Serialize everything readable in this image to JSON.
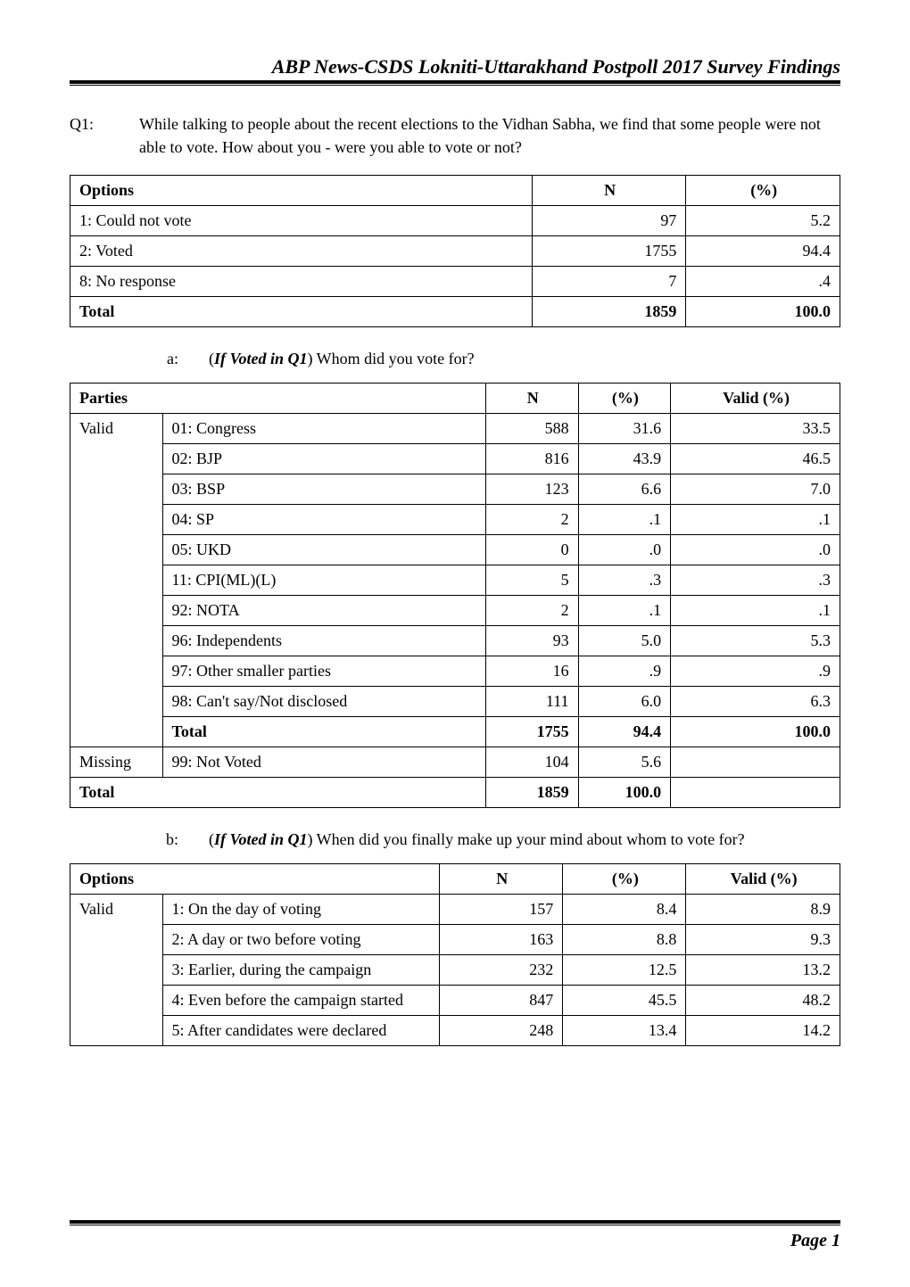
{
  "header": {
    "title": "ABP News-CSDS Lokniti-Uttarakhand Postpoll 2017 Survey Findings"
  },
  "q1": {
    "label": "Q1:",
    "text": "While talking to people about the recent elections to the Vidhan Sabha, we find that some people were not able to vote. How about you - were you able to vote or not?"
  },
  "table1": {
    "columns": [
      "Options",
      "N",
      "(%)"
    ],
    "col_widths": [
      "60%",
      "20%",
      "20%"
    ],
    "col_align": [
      "left",
      "right",
      "right"
    ],
    "header_align": [
      "left",
      "center",
      "center"
    ],
    "rows": [
      [
        "1: Could not vote",
        "97",
        "5.2"
      ],
      [
        "2: Voted",
        "1755",
        "94.4"
      ],
      [
        "8: No response",
        "7",
        ".4"
      ]
    ],
    "total_row": [
      "Total",
      "1859",
      "100.0"
    ],
    "border_color": "#000000",
    "background_color": "#ffffff",
    "font_size_pt": 14
  },
  "sub_a": {
    "label": "a:",
    "prefix": "(",
    "emph": "If Voted in Q1",
    "suffix": ") Whom did you vote for?"
  },
  "table2": {
    "columns": [
      "Parties",
      "",
      "N",
      "(%)",
      "Valid (%)"
    ],
    "col_widths": [
      "12%",
      "42%",
      "12%",
      "12%",
      "22%"
    ],
    "header_align": [
      "left",
      "left",
      "center",
      "center",
      "center"
    ],
    "valid_label": "Valid",
    "valid_rows": [
      [
        "01: Congress",
        "588",
        "31.6",
        "33.5"
      ],
      [
        "02: BJP",
        "816",
        "43.9",
        "46.5"
      ],
      [
        "03: BSP",
        "123",
        "6.6",
        "7.0"
      ],
      [
        "04: SP",
        "2",
        ".1",
        ".1"
      ],
      [
        "05: UKD",
        "0",
        ".0",
        ".0"
      ],
      [
        "11: CPI(ML)(L)",
        "5",
        ".3",
        ".3"
      ],
      [
        "92: NOTA",
        "2",
        ".1",
        ".1"
      ],
      [
        "96: Independents",
        "93",
        "5.0",
        "5.3"
      ],
      [
        "97: Other smaller parties",
        "16",
        ".9",
        ".9"
      ],
      [
        "98: Can't say/Not disclosed",
        "111",
        "6.0",
        "6.3"
      ]
    ],
    "valid_total": [
      "Total",
      "1755",
      "94.4",
      "100.0"
    ],
    "missing_label": "Missing",
    "missing_row": [
      "99: Not Voted",
      "104",
      "5.6",
      ""
    ],
    "grand_total": [
      "Total",
      "1859",
      "100.0",
      ""
    ],
    "border_color": "#000000",
    "font_size_pt": 14
  },
  "sub_b": {
    "label": "b:",
    "prefix": "(",
    "emph": "If Voted in Q1",
    "suffix": ") When did you finally make up your mind about whom to vote for?"
  },
  "table3": {
    "columns": [
      "Options",
      "",
      "N",
      "(%)",
      "Valid (%)"
    ],
    "col_widths": [
      "12%",
      "36%",
      "16%",
      "16%",
      "20%"
    ],
    "header_align": [
      "left",
      "left",
      "center",
      "center",
      "center"
    ],
    "valid_label": "Valid",
    "valid_rows": [
      [
        "1: On the day of voting",
        "157",
        "8.4",
        "8.9"
      ],
      [
        "2: A day or two before voting",
        "163",
        "8.8",
        "9.3"
      ],
      [
        "3: Earlier, during the campaign",
        "232",
        "12.5",
        "13.2"
      ],
      [
        "4: Even before the campaign started",
        "847",
        "45.5",
        "48.2"
      ],
      [
        "5: After candidates were declared",
        "248",
        "13.4",
        "14.2"
      ]
    ],
    "border_color": "#000000",
    "font_size_pt": 14
  },
  "footer": {
    "text": "Page 1"
  }
}
